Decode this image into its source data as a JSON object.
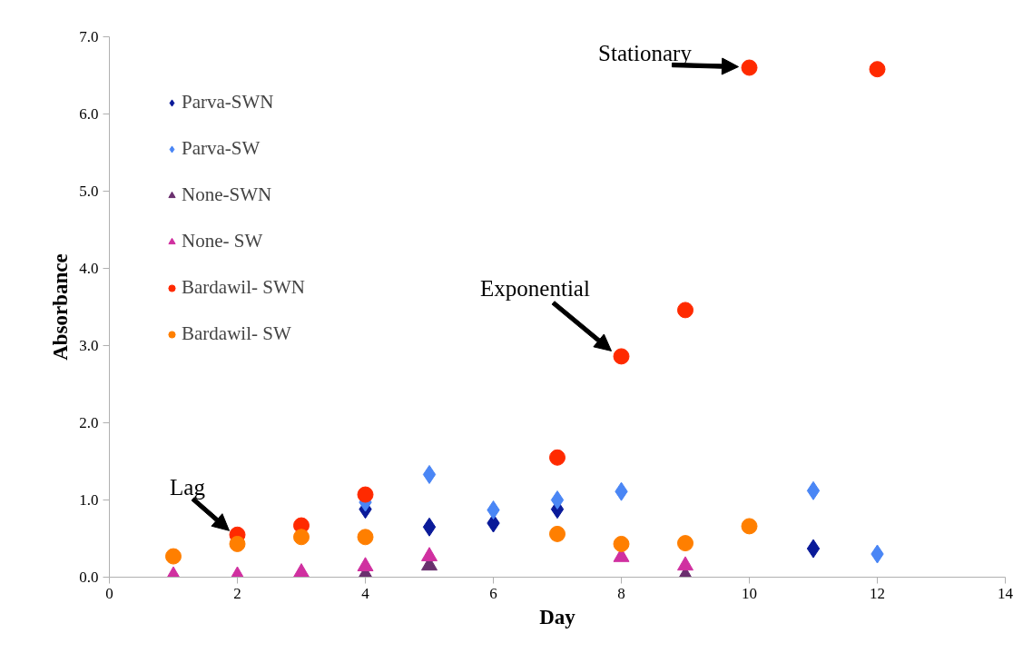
{
  "chart_data": {
    "type": "scatter",
    "xlabel": "Day",
    "ylabel": "Absorbance",
    "xlim": [
      0,
      14
    ],
    "xticks": [
      0,
      2,
      4,
      6,
      8,
      10,
      12,
      14
    ],
    "ylim": [
      0,
      7
    ],
    "yticks": [
      {
        "value": 0,
        "label": "0.0"
      },
      {
        "value": 1,
        "label": "1.0"
      },
      {
        "value": 2,
        "label": "2.0"
      },
      {
        "value": 3,
        "label": "3.0"
      },
      {
        "value": 4,
        "label": "4.0"
      },
      {
        "value": 5,
        "label": "5.0"
      },
      {
        "value": 6,
        "label": "6.0"
      },
      {
        "value": 7,
        "label": "7.0"
      }
    ],
    "grid": false,
    "legend": "top left",
    "series": [
      {
        "name": "Parva-SWN",
        "color": "#0a1a99",
        "marker": "diamond",
        "x": [
          4,
          5,
          6,
          7,
          11
        ],
        "values": [
          0.88,
          0.65,
          0.7,
          0.88,
          0.37
        ]
      },
      {
        "name": "Parva-SW",
        "color": "#4a86f5",
        "marker": "diamond",
        "x": [
          4,
          5,
          6,
          7,
          8,
          11,
          12
        ],
        "values": [
          0.97,
          1.33,
          0.87,
          1.0,
          1.11,
          1.12,
          0.3
        ]
      },
      {
        "name": "None-SWN",
        "color": "#6a2f6e",
        "marker": "triangle",
        "x": [
          4,
          5,
          9
        ],
        "values": [
          0.03,
          0.15,
          0.02
        ]
      },
      {
        "name": "None- SW",
        "color": "#d030a0",
        "marker": "triangle",
        "x": [
          1,
          2,
          3,
          4,
          5,
          8,
          9
        ],
        "values": [
          0.02,
          0.02,
          0.06,
          0.14,
          0.27,
          0.26,
          0.15
        ]
      },
      {
        "name": "Bardawil- SWN",
        "color": "#ff2a00",
        "marker": "circle",
        "x": [
          2,
          3,
          4,
          7,
          8,
          9,
          10,
          12
        ],
        "values": [
          0.55,
          0.67,
          1.07,
          1.55,
          2.86,
          3.46,
          6.6,
          6.58
        ]
      },
      {
        "name": "Bardawil- SW",
        "color": "#ff7f00",
        "marker": "circle",
        "x": [
          1,
          2,
          3,
          4,
          7,
          8,
          9,
          10
        ],
        "values": [
          0.27,
          0.43,
          0.52,
          0.52,
          0.56,
          0.43,
          0.44,
          0.66
        ]
      }
    ],
    "annotations": [
      {
        "text": "Lag",
        "x": 2,
        "y": 0.52
      },
      {
        "text": "Exponential",
        "x": 8,
        "y": 2.86
      },
      {
        "text": "Stationary",
        "x": 10,
        "y": 6.6
      }
    ]
  }
}
